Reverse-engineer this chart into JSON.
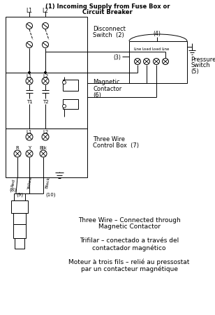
{
  "bg_color": "#ffffff",
  "fig_width": 3.08,
  "fig_height": 4.52,
  "dpi": 100,
  "title1": "(1) Incoming Supply from Fuse Box or",
  "title2": "Circuit Breaker",
  "disconnect_label1": "Disconnect",
  "disconnect_label2": "Switch  (2)",
  "label3": "(3)",
  "label4": "(4)",
  "pressure1": "Pressure",
  "pressure2": "Switch",
  "pressure3": "(5)",
  "magnetic1": "Magnetic",
  "magnetic2": "Contactor",
  "magnetic3": "(6)",
  "threewire1": "Three Wire",
  "threewire2": "Control Box  (7)",
  "lbl_L1": "L1",
  "lbl_L2": "L2",
  "lbl_T1": "T1",
  "lbl_T2": "T2",
  "lbl_R": "R",
  "lbl_Y": "Y",
  "lbl_Blk": "Blk",
  "lbl_8": "(8)",
  "lbl_9": "(9)",
  "lbl_10": "(10)",
  "lbl_Red": "Red",
  "lbl_Yellow": "Yellow",
  "lbl_Black": "Black",
  "lbl_Line": "Line",
  "lbl_Load": "Load",
  "text1a": "Three Wire – Connected through",
  "text1b": "Magnetic Contactor",
  "text2a": "Trifilar – conectado a través del",
  "text2b": "contactador magnético",
  "text3a": "Moteur à trois fils – relié au pressostat",
  "text3b": "par un contacteur magnétique"
}
